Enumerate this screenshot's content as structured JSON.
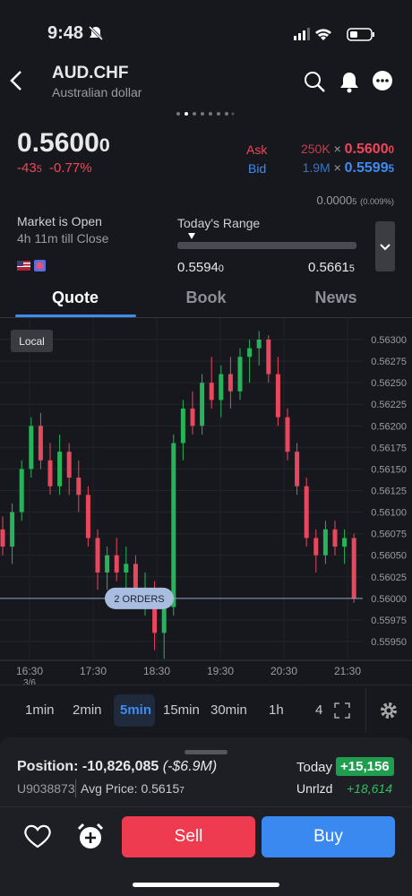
{
  "status": {
    "time": "9:48"
  },
  "header": {
    "symbol": "AUD.CHF",
    "name": "Australian dollar"
  },
  "quote": {
    "price": "0.5600",
    "price_small": "0",
    "change": "-43",
    "change_small": "5",
    "percent": "-0.77%"
  },
  "ask": {
    "label": "Ask",
    "size": "250K",
    "times": "×",
    "price": "0.5600",
    "price_small": "0"
  },
  "bid": {
    "label": "Bid",
    "size": "1.9M",
    "times": "×",
    "price": "0.5599",
    "price_small": "5"
  },
  "spread": {
    "value": "0.0000",
    "value_small": "5",
    "percent": "(0.009%)"
  },
  "market": {
    "status": "Market is Open",
    "close": "4h 11m till Close"
  },
  "range": {
    "label": "Today's Range",
    "low": "0.5594",
    "low_small": "0",
    "high": "0.5661",
    "high_small": "5"
  },
  "tabs": [
    "Quote",
    "Book",
    "News"
  ],
  "chart": {
    "badge": "Local",
    "orders_label": "2 ORDERS",
    "order_price": 0.56,
    "ylim": [
      0.55925,
      0.56325
    ],
    "yticks": [
      {
        "value": 0.563,
        "label": "0.56300"
      },
      {
        "value": 0.56275,
        "label": "0.56275"
      },
      {
        "value": 0.5625,
        "label": "0.56250"
      },
      {
        "value": 0.56225,
        "label": "0.56225"
      },
      {
        "value": 0.562,
        "label": "0.56200"
      },
      {
        "value": 0.56175,
        "label": "0.56175"
      },
      {
        "value": 0.5615,
        "label": "0.56150"
      },
      {
        "value": 0.56125,
        "label": "0.56125"
      },
      {
        "value": 0.561,
        "label": "0.56100"
      },
      {
        "value": 0.56075,
        "label": "0.56075"
      },
      {
        "value": 0.5605,
        "label": "0.56050"
      },
      {
        "value": 0.56025,
        "label": "0.56025"
      },
      {
        "value": 0.56,
        "label": "0.56000"
      },
      {
        "value": 0.55975,
        "label": "0.55975"
      },
      {
        "value": 0.5595,
        "label": "0.55950"
      }
    ],
    "xticks": [
      "16:30",
      "17:30",
      "18:30",
      "19:30",
      "20:30",
      "21:30"
    ],
    "date_label": "3/6",
    "candles": [
      [
        0.5608,
        0.56095,
        0.5605,
        0.5606
      ],
      [
        0.5606,
        0.5611,
        0.5604,
        0.561
      ],
      [
        0.561,
        0.5616,
        0.5609,
        0.5615
      ],
      [
        0.5615,
        0.5621,
        0.5614,
        0.562
      ],
      [
        0.562,
        0.56215,
        0.5615,
        0.5616
      ],
      [
        0.5616,
        0.5618,
        0.5612,
        0.5613
      ],
      [
        0.5613,
        0.5619,
        0.5612,
        0.5617
      ],
      [
        0.5617,
        0.5618,
        0.5612,
        0.5614
      ],
      [
        0.5614,
        0.5616,
        0.561,
        0.5612
      ],
      [
        0.5612,
        0.5613,
        0.5606,
        0.5607
      ],
      [
        0.5607,
        0.5608,
        0.5601,
        0.5603
      ],
      [
        0.5603,
        0.5606,
        0.5601,
        0.5605
      ],
      [
        0.5605,
        0.5607,
        0.5602,
        0.5603
      ],
      [
        0.5603,
        0.5606,
        0.56,
        0.5604
      ],
      [
        0.5604,
        0.5605,
        0.5599,
        0.56
      ],
      [
        0.56,
        0.5603,
        0.5598,
        0.5601
      ],
      [
        0.5601,
        0.5602,
        0.5594,
        0.5596
      ],
      [
        0.5596,
        0.56,
        0.5593,
        0.5599
      ],
      [
        0.5599,
        0.5619,
        0.5598,
        0.5618
      ],
      [
        0.5618,
        0.5623,
        0.5616,
        0.5622
      ],
      [
        0.5622,
        0.5624,
        0.5619,
        0.562
      ],
      [
        0.562,
        0.5626,
        0.5619,
        0.5625
      ],
      [
        0.5625,
        0.5628,
        0.5622,
        0.5623
      ],
      [
        0.5623,
        0.5627,
        0.5621,
        0.5626
      ],
      [
        0.5626,
        0.5628,
        0.5622,
        0.5624
      ],
      [
        0.5624,
        0.5629,
        0.5623,
        0.5628
      ],
      [
        0.5628,
        0.563,
        0.5625,
        0.5629
      ],
      [
        0.5629,
        0.5631,
        0.5627,
        0.563
      ],
      [
        0.563,
        0.56305,
        0.5625,
        0.5626
      ],
      [
        0.5626,
        0.5628,
        0.562,
        0.5621
      ],
      [
        0.5621,
        0.5622,
        0.5616,
        0.5617
      ],
      [
        0.5617,
        0.5618,
        0.5612,
        0.5613
      ],
      [
        0.5613,
        0.5614,
        0.5606,
        0.5607
      ],
      [
        0.5607,
        0.5608,
        0.5603,
        0.5605
      ],
      [
        0.5605,
        0.5609,
        0.5604,
        0.5608
      ],
      [
        0.5608,
        0.5609,
        0.5605,
        0.5606
      ],
      [
        0.5606,
        0.5608,
        0.5604,
        0.5607
      ],
      [
        0.5607,
        0.56075,
        0.55995,
        0.56
      ]
    ]
  },
  "timeframes": [
    "1min",
    "2min",
    "5min",
    "15min",
    "30min",
    "1h",
    "4"
  ],
  "position": {
    "label": "Position:",
    "value": "-10,826,085",
    "notional": "(-$6.9M)",
    "account": "U9038873",
    "avg_label": "Avg Price:",
    "avg": "0.5615",
    "avg_small": "7",
    "today_label": "Today",
    "today": "+15,156",
    "unrlzd_label": "Unrlzd",
    "unrlzd": "+18,614"
  },
  "actions": {
    "sell": "Sell",
    "buy": "Buy"
  }
}
